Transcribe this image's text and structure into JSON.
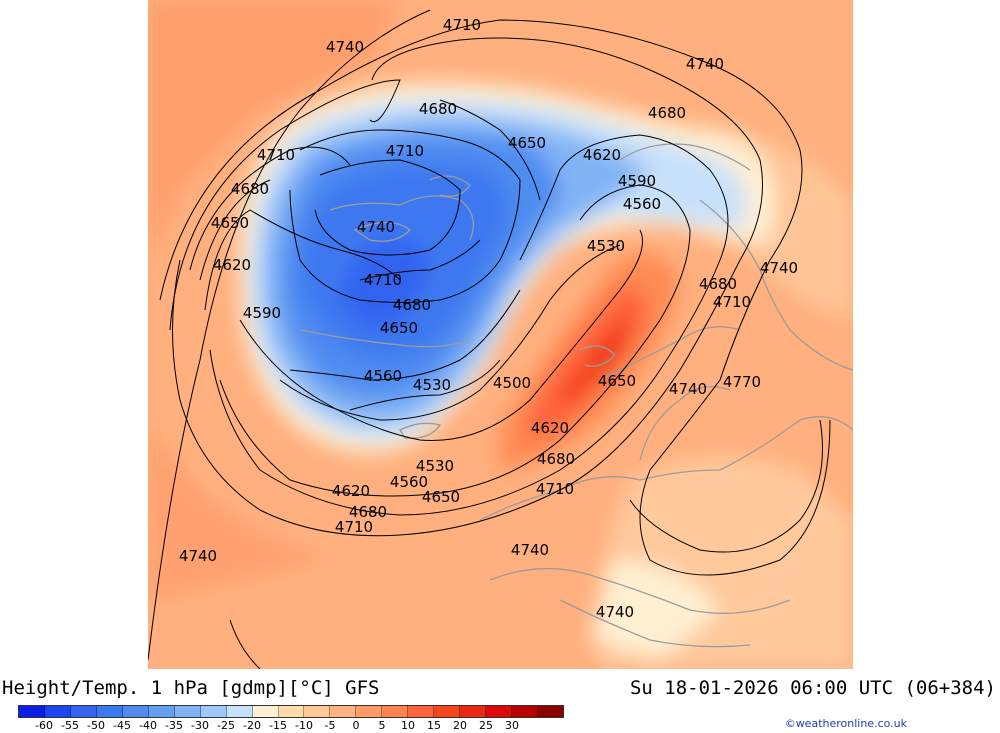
{
  "header": {
    "title": "Height/Temp. 1 hPa [gdmp][°C] GFS",
    "valid_time": "Su 18-01-2026 06:00 UTC (06+384)",
    "credit": "©weatheronline.co.uk"
  },
  "legend": {
    "colors": [
      "#0a1ee6",
      "#1e46f0",
      "#3264f0",
      "#3c78f0",
      "#508cf0",
      "#64a0f0",
      "#82b4f5",
      "#a0c8fa",
      "#c8e1fa",
      "#fff0d2",
      "#ffdcaa",
      "#ffc896",
      "#ffb482",
      "#ff9b64",
      "#ff8250",
      "#ff643c",
      "#f5461e",
      "#eb2814",
      "#dc0a0a",
      "#b90000",
      "#8c0000"
    ],
    "ticks": [
      "-60",
      "-55",
      "-50",
      "-45",
      "-40",
      "-35",
      "-30",
      "-25",
      "-20",
      "-15",
      "-10",
      "-5",
      "0",
      "5",
      "10",
      "15",
      "20",
      "25",
      "30"
    ]
  },
  "contour_labels": [
    {
      "text": "4710"
    },
    {
      "text": "4740"
    },
    {
      "text": "4740"
    },
    {
      "text": "4680"
    },
    {
      "text": "4680"
    },
    {
      "text": "4710"
    },
    {
      "text": "4710"
    },
    {
      "text": "4650"
    },
    {
      "text": "4620"
    },
    {
      "text": "4680"
    },
    {
      "text": "4590"
    },
    {
      "text": "4560"
    },
    {
      "text": "4740"
    },
    {
      "text": "4650"
    },
    {
      "text": "4530"
    },
    {
      "text": "4620"
    },
    {
      "text": "4710"
    },
    {
      "text": "4740"
    },
    {
      "text": "4680"
    },
    {
      "text": "4680"
    },
    {
      "text": "4710"
    },
    {
      "text": "4590"
    },
    {
      "text": "4650"
    },
    {
      "text": "4650"
    },
    {
      "text": "4560"
    },
    {
      "text": "4530"
    },
    {
      "text": "4500"
    },
    {
      "text": "4740"
    },
    {
      "text": "4770"
    },
    {
      "text": "4620"
    },
    {
      "text": "4530"
    },
    {
      "text": "4680"
    },
    {
      "text": "4560"
    },
    {
      "text": "4620"
    },
    {
      "text": "4650"
    },
    {
      "text": "4710"
    },
    {
      "text": "4680"
    },
    {
      "text": "4710"
    },
    {
      "text": "4740"
    },
    {
      "text": "4740"
    },
    {
      "text": "4740"
    }
  ]
}
